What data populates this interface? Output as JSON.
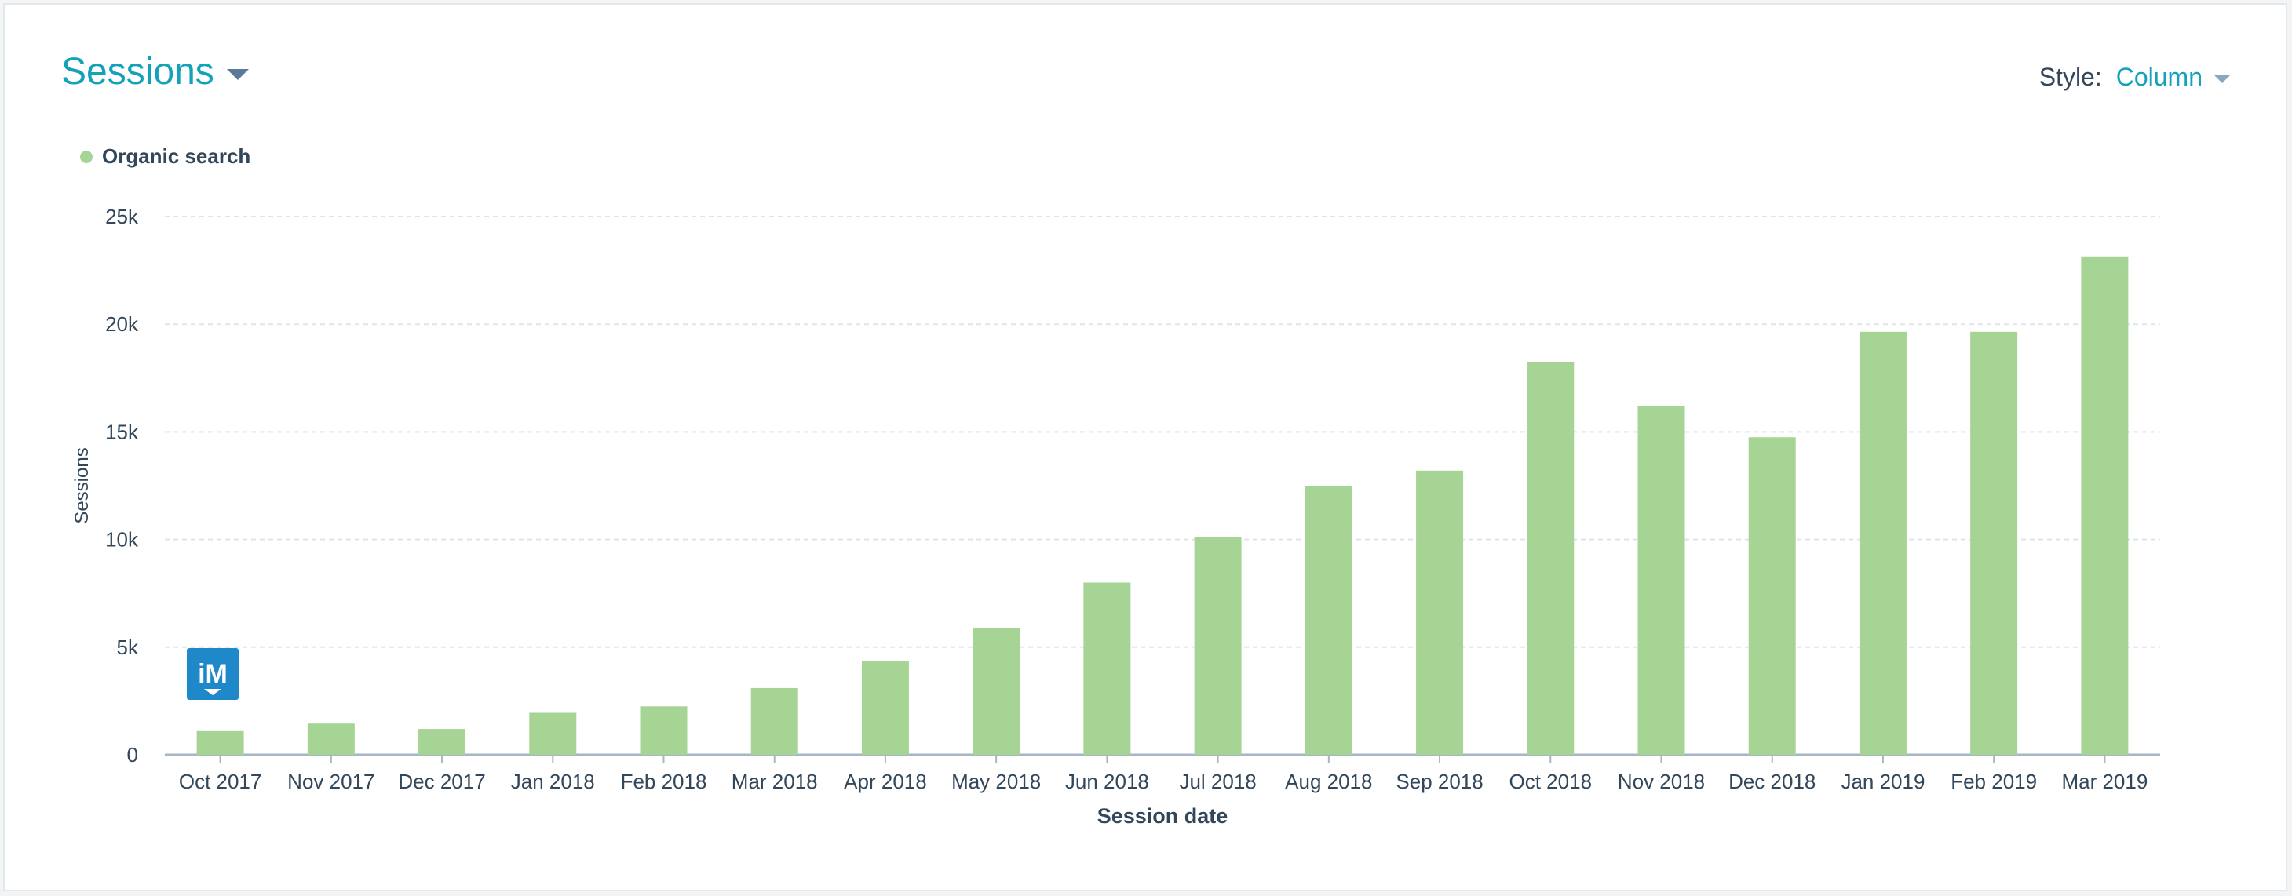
{
  "header": {
    "title": "Sessions",
    "style_label": "Style:",
    "style_value": "Column"
  },
  "logo": {
    "text": "iM"
  },
  "colors": {
    "accent": "#14a2bb",
    "bar": "#a5d495",
    "text": "#33475b",
    "grid": "#dfe3eb"
  },
  "chart_data": {
    "type": "bar",
    "categories": [
      "Oct 2017",
      "Nov 2017",
      "Dec 2017",
      "Jan 2018",
      "Feb 2018",
      "Mar 2018",
      "Apr 2018",
      "May 2018",
      "Jun 2018",
      "Jul 2018",
      "Aug 2018",
      "Sep 2018",
      "Oct 2018",
      "Nov 2018",
      "Dec 2018",
      "Jan 2019",
      "Feb 2019",
      "Mar 2019"
    ],
    "series": [
      {
        "name": "Organic search",
        "values": [
          1100,
          1450,
          1200,
          1950,
          2250,
          3100,
          4350,
          5900,
          8000,
          10100,
          12500,
          13200,
          18250,
          16200,
          14750,
          19650,
          19650,
          23150
        ]
      }
    ],
    "xlabel": "Session date",
    "ylabel": "Sessions",
    "ylim": [
      0,
      25000
    ],
    "yticks": [
      0,
      5000,
      10000,
      15000,
      20000,
      25000
    ],
    "ytick_labels": [
      "0",
      "5k",
      "10k",
      "15k",
      "20k",
      "25k"
    ],
    "grid": true,
    "legend": "top-left"
  }
}
